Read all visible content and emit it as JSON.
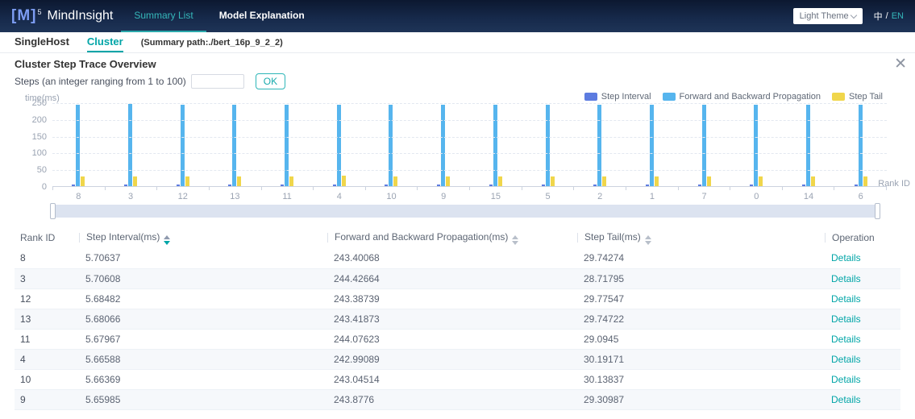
{
  "navbar": {
    "logo": {
      "bracket": "[M]",
      "sup": "5",
      "name": "MindInsight"
    },
    "tabs": [
      {
        "label": "Summary List"
      },
      {
        "label": "Model Explanation"
      }
    ],
    "theme_select": {
      "value": "Light Theme"
    },
    "lang": {
      "zh": "中",
      "sep": "/",
      "en": "EN"
    }
  },
  "subnav": {
    "tabs": [
      {
        "label": "SingleHost"
      },
      {
        "label": "Cluster"
      }
    ],
    "summary_path": "(Summary path:./bert_16p_9_2_2)"
  },
  "section": {
    "title": "Cluster Step Trace Overview",
    "close_icon": "✕",
    "steps_label": "Steps (an integer ranging from 1 to 100)",
    "steps_value": "",
    "ok_label": "OK"
  },
  "chart_data": {
    "type": "bar",
    "title": "Cluster Step Trace Overview",
    "xlabel": "Rank ID",
    "ylabel": "time(ms)",
    "ylim": [
      0,
      250
    ],
    "yticks": [
      0,
      50,
      100,
      150,
      200,
      250
    ],
    "grid": "horizontal-dashed",
    "legend_position": "top-right",
    "categories": [
      "8",
      "3",
      "12",
      "13",
      "11",
      "4",
      "10",
      "9",
      "15",
      "5",
      "2",
      "1",
      "7",
      "0",
      "14",
      "6"
    ],
    "series": [
      {
        "name": "Step Interval",
        "color": "#5c7be0",
        "values": [
          5.70637,
          5.70608,
          5.68482,
          5.68066,
          5.67967,
          5.66588,
          5.66369,
          5.65985,
          5.7,
          5.7,
          5.7,
          5.7,
          5.7,
          5.7,
          5.7,
          5.7
        ]
      },
      {
        "name": "Forward and Backward Propagation",
        "color": "#56b5ee",
        "values": [
          243.40068,
          244.42664,
          243.38739,
          243.41873,
          244.07623,
          242.99089,
          243.04514,
          243.8776,
          243.5,
          243.5,
          243.5,
          243.5,
          243.5,
          243.5,
          243.5,
          243.5
        ]
      },
      {
        "name": "Step Tail",
        "color": "#f0d64b",
        "values": [
          29.74274,
          28.71795,
          29.77547,
          29.74722,
          29.0945,
          30.19171,
          30.13837,
          29.30987,
          29.5,
          29.5,
          29.5,
          29.5,
          29.5,
          29.5,
          29.5,
          29.5
        ]
      }
    ]
  },
  "table": {
    "columns": [
      {
        "label": "Rank ID",
        "sortable": false
      },
      {
        "label": "Step Interval(ms)",
        "sortable": true,
        "sort": "desc"
      },
      {
        "label": "Forward and Backward Propagation(ms)",
        "sortable": true,
        "sort": "none"
      },
      {
        "label": "Step Tail(ms)",
        "sortable": true,
        "sort": "none"
      },
      {
        "label": "Operation",
        "sortable": false
      }
    ],
    "rows": [
      {
        "rank": "8",
        "interval": "5.70637",
        "propagation": "243.40068",
        "tail": "29.74274",
        "operation": "Details"
      },
      {
        "rank": "3",
        "interval": "5.70608",
        "propagation": "244.42664",
        "tail": "28.71795",
        "operation": "Details"
      },
      {
        "rank": "12",
        "interval": "5.68482",
        "propagation": "243.38739",
        "tail": "29.77547",
        "operation": "Details"
      },
      {
        "rank": "13",
        "interval": "5.68066",
        "propagation": "243.41873",
        "tail": "29.74722",
        "operation": "Details"
      },
      {
        "rank": "11",
        "interval": "5.67967",
        "propagation": "244.07623",
        "tail": "29.0945",
        "operation": "Details"
      },
      {
        "rank": "4",
        "interval": "5.66588",
        "propagation": "242.99089",
        "tail": "30.19171",
        "operation": "Details"
      },
      {
        "rank": "10",
        "interval": "5.66369",
        "propagation": "243.04514",
        "tail": "30.13837",
        "operation": "Details"
      },
      {
        "rank": "9",
        "interval": "5.65985",
        "propagation": "243.8776",
        "tail": "29.30987",
        "operation": "Details"
      }
    ]
  },
  "colors": {
    "accent_teal": "#00a5a7",
    "navbar_bg": "#16294a",
    "step_interval": "#5c7be0",
    "propagation": "#56b5ee",
    "step_tail": "#f0d64b",
    "stripe": "#f6f8fb"
  }
}
